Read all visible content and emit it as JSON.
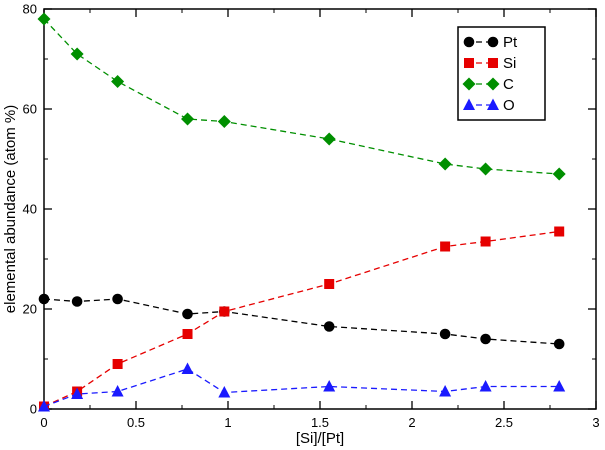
{
  "chart_data": {
    "type": "line",
    "title": "",
    "xlabel": "[Si]/[Pt]",
    "ylabel": "elemental abundance (atom %)",
    "xlim": [
      0,
      3
    ],
    "ylim": [
      0,
      80
    ],
    "x_ticks": [
      0,
      0.5,
      1,
      1.5,
      2,
      2.5,
      3
    ],
    "x_tick_labels": [
      "0",
      "0.5",
      "1",
      "1.5",
      "2",
      "2.5",
      "3"
    ],
    "x_minor_ticks": [
      0.25,
      0.75,
      1.25,
      1.75,
      2.25,
      2.75
    ],
    "y_ticks": [
      0,
      20,
      40,
      60,
      80
    ],
    "y_tick_labels": [
      "0",
      "20",
      "40",
      "60",
      "80"
    ],
    "y_minor_ticks": [
      10,
      30,
      50,
      70
    ],
    "grid": false,
    "legend_position": "upper right",
    "line_style": "dashed",
    "x": [
      0,
      0.18,
      0.4,
      0.78,
      0.98,
      1.55,
      2.18,
      2.4,
      2.8
    ],
    "series": [
      {
        "name": "Pt",
        "marker": "circle",
        "color": "#000000",
        "values": [
          22,
          21.5,
          22,
          19,
          19.5,
          16.5,
          15,
          14,
          13
        ]
      },
      {
        "name": "Si",
        "marker": "square",
        "color": "#e60000",
        "values": [
          0.5,
          3.5,
          9,
          15,
          19.5,
          25,
          32.5,
          33.5,
          35.5
        ]
      },
      {
        "name": "C",
        "marker": "diamond",
        "color": "#008f00",
        "values": [
          78,
          71,
          65.5,
          58,
          57.5,
          54,
          49,
          48,
          47
        ]
      },
      {
        "name": "O",
        "marker": "triangle",
        "color": "#1a1aff",
        "values": [
          0.5,
          3,
          3.5,
          8,
          3.3,
          4.5,
          3.5,
          4.5,
          4.5
        ]
      }
    ]
  }
}
